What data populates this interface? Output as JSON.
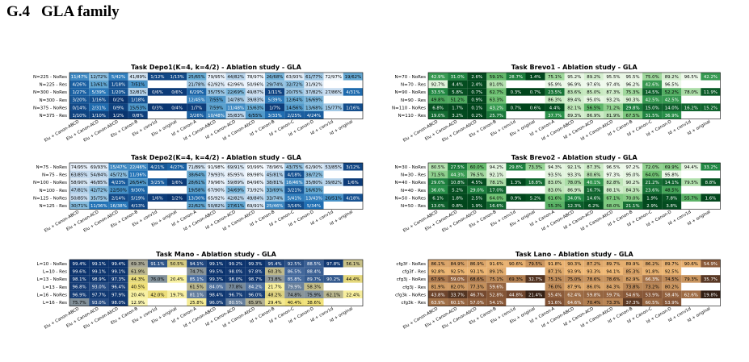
{
  "section": {
    "number": "G.4",
    "title": "GLA family"
  },
  "chart_data": [
    {
      "type": "heatmap",
      "title": "Task Depo1(K=4, k=4/2) - Ablation study - GLA",
      "colormap": "blues",
      "rows": [
        "N=225 - NoRes",
        "N=225 - Res",
        "N=300 - NoRes",
        "N=300 - Res",
        "N=375 - NoRes",
        "N=375 - Res"
      ],
      "columns": [
        "Elu + Canon-ABCD",
        "Elu + Canon-ACD",
        "Elu + Canon-AbCD",
        "Elu + Canon-B",
        "Elu + conv1d",
        "Elu + original",
        "Id + Canon-A",
        "Id + Canon-ABCD",
        "Id + Canon-ACD",
        "Id + Canon-AbCD",
        "Id + Canon-B",
        "Id + Canon-C",
        "Id + Canon-D",
        "Id + conv1d",
        "Id + original"
      ],
      "cells": [
        [
          "11/47%",
          "12/72%",
          "5/42%",
          "41/89%",
          "1/12%",
          "1/13%",
          "25/65%",
          "79/95%",
          "44/82%",
          "78/97%",
          "26/68%",
          "63/93%",
          "61/77%",
          "72/97%",
          "19/62%"
        ],
        [
          "4/26%",
          "13/61%",
          "1/18%",
          "7/51%",
          "",
          "",
          "21/78%",
          "62/92%",
          "62/96%",
          "50/96%",
          "29/74%",
          "32/72%",
          "31/92%",
          "",
          ""
        ],
        [
          "1/27%",
          "5/39%",
          "1/20%",
          "32/81%",
          "0/6%",
          "0/6%",
          "6/29%",
          "35/75%",
          "22/69%",
          "49/87%",
          "1/11%",
          "20/75%",
          "37/82%",
          "27/86%",
          "4/31%"
        ],
        [
          "3/20%",
          "1/16%",
          "0/2%",
          "1/18%",
          "",
          "",
          "12/45%",
          "7/55%",
          "14/78%",
          "39/83%",
          "5/39%",
          "12/64%",
          "16/69%",
          "",
          ""
        ],
        [
          "0/14%",
          "2/31%",
          "0/9%",
          "15/53%",
          "0/3%",
          "0/4%",
          "1/7%",
          "7/59%",
          "11/48%",
          "15/63%",
          "1/7%",
          "14/56%",
          "13/68%",
          "15/77%",
          "1/16%"
        ],
        [
          "1/10%",
          "1/10%",
          "1/2%",
          "0/8%",
          "",
          "",
          "3/26%",
          "10/48%",
          "35/83%",
          "6/55%",
          "3/33%",
          "2/25%",
          "4/24%",
          "",
          ""
        ]
      ]
    },
    {
      "type": "heatmap",
      "title": "Task Brevo1 - Ablation study - GLA",
      "colormap": "greens",
      "rows": [
        "N=70 - NoRes",
        "N=70 - Res",
        "N=90 - NoRes",
        "N=90 - Res",
        "N=110 - NoRes",
        "N=110 - Res"
      ],
      "columns": [
        "Elu + Canon-ABCD",
        "Elu + Canon-ACD",
        "Elu + Canon-AbCD",
        "Elu + Canon-B",
        "Elu + conv1d",
        "Elu + original",
        "Id + Canon-A",
        "Id + Canon-ABCD",
        "Id + Canon-ACD",
        "Id + Canon-AbCD",
        "Id + Canon-B",
        "Id + Canon-C",
        "Id + Canon-D",
        "Id + conv1d",
        "Id + original"
      ],
      "cells": [
        [
          "42.9%",
          "31.0%",
          "2.6%",
          "59.1%",
          "28.7%",
          "1.4%",
          "75.1%",
          "95.2%",
          "89.2%",
          "95.5%",
          "95.5%",
          "75.0%",
          "89.2%",
          "96.5%",
          "42.2%"
        ],
        [
          "92.7%",
          "4.4%",
          "2.4%",
          "81.0%",
          "",
          "",
          "95.9%",
          "96.9%",
          "97.6%",
          "97.4%",
          "96.2%",
          "42.6%",
          "96.5%",
          "",
          ""
        ],
        [
          "33.5%",
          "5.8%",
          "0.7%",
          "62.7%",
          "0.3%",
          "0.7%",
          "23.5%",
          "83.6%",
          "85.0%",
          "87.3%",
          "75.3%",
          "14.5%",
          "52.2%",
          "78.0%",
          "11.9%"
        ],
        [
          "49.8%",
          "51.2%",
          "0.9%",
          "63.3%",
          "",
          "",
          "86.3%",
          "89.4%",
          "95.0%",
          "93.2%",
          "90.3%",
          "42.5%",
          "42.5%",
          "",
          ""
        ],
        [
          "6.8%",
          "1.7%",
          "0.1%",
          "43.2%",
          "0.7%",
          "0.6%",
          "4.4%",
          "82.1%",
          "56.5%",
          "71.2%",
          "29.8%",
          "15.0%",
          "14.0%",
          "16.2%",
          "15.2%"
        ],
        [
          "19.0%",
          "3.2%",
          "0.2%",
          "25.7%",
          "",
          "",
          "37.7%",
          "89.3%",
          "86.9%",
          "81.9%",
          "67.5%",
          "31.5%",
          "36.9%",
          "",
          ""
        ]
      ]
    },
    {
      "type": "heatmap",
      "title": "Task Depo2(K=4, k=4/2) - Ablation study - GLA",
      "colormap": "blues",
      "rows": [
        "N=75 - NoRes",
        "N=75 - Res",
        "N=100 - NoRes",
        "N=100 - Res",
        "N=125 - NoRes",
        "N=125 - Res"
      ],
      "columns": [
        "Elu + Canon-ABCD",
        "Elu + Canon-ACD",
        "Elu + Canon-AbCD",
        "Elu + Canon-B",
        "Elu + conv1d",
        "Elu + original",
        "Id + Canon-A",
        "Id + Canon-ABCD",
        "Id + Canon-ACD",
        "Id + Canon-AbCD",
        "Id + Canon-B",
        "Id + Canon-C",
        "Id + Canon-D",
        "Id + conv1d",
        "Id + original"
      ],
      "cells": [
        [
          "74/95%",
          "69/93%",
          "15/47%",
          "22/46%",
          "4/21%",
          "4/27%",
          "71/89%",
          "91/98%",
          "69/91%",
          "93/99%",
          "78/96%",
          "43/75%",
          "62/90%",
          "53/85%",
          "3/12%"
        ],
        [
          "63/85%",
          "54/84%",
          "45/72%",
          "11/36%",
          "",
          "",
          "38/64%",
          "79/93%",
          "85/95%",
          "89/98%",
          "45/81%",
          "4/18%",
          "38/72%",
          "",
          ""
        ],
        [
          "58/90%",
          "46/85%",
          "4/23%",
          "26/54%",
          "3/25%",
          "1/6%",
          "28/61%",
          "79/96%",
          "59/89%",
          "84/96%",
          "38/81%",
          "16/46%",
          "35/80%",
          "39/82%",
          "1/6%"
        ],
        [
          "47/81%",
          "42/72%",
          "22/50%",
          "9/30%",
          "",
          "",
          "19/58%",
          "67/90%",
          "34/69%",
          "73/92%",
          "33/69%",
          "3/21%",
          "16/63%",
          "",
          ""
        ],
        [
          "50/85%",
          "35/75%",
          "2/14%",
          "5/19%",
          "1/6%",
          "1/2%",
          "13/30%",
          "65/92%",
          "42/82%",
          "49/84%",
          "33/74%",
          "5/41%",
          "13/43%",
          "20/51%",
          "4/18%"
        ],
        [
          "30/71%",
          "11/36%",
          "16/38%",
          "4/13%",
          "",
          "",
          "22/62%",
          "50/82%",
          "27/61%",
          "69/91%",
          "25/46%",
          "3/16%",
          "5/34%",
          "",
          ""
        ]
      ]
    },
    {
      "type": "heatmap",
      "title": "Task Brevo2 - Ablation study - GLA",
      "colormap": "greens",
      "rows": [
        "N=30 - NoRes",
        "N=30 - Res",
        "N=40 - NoRes",
        "N=40 - Res",
        "N=50 - NoRes",
        "N=50 - Res"
      ],
      "columns": [
        "Elu + Canon-ABCD",
        "Elu + Canon-ACD",
        "Elu + Canon-AbCD",
        "Elu + Canon-B",
        "Elu + conv1d",
        "Elu + original",
        "Id + Canon-A",
        "Id + Canon-ABCD",
        "Id + Canon-ACD",
        "Id + Canon-AbCD",
        "Id + Canon-B",
        "Id + Canon-C",
        "Id + Canon-D",
        "Id + conv1d",
        "Id + original"
      ],
      "cells": [
        [
          "80.5%",
          "27.5%",
          "60.0%",
          "94.2%",
          "29.8%",
          "73.3%",
          "94.3%",
          "92.1%",
          "87.3%",
          "96.5%",
          "97.2%",
          "72.0%",
          "69.9%",
          "94.4%",
          "33.2%"
        ],
        [
          "71.5%",
          "44.3%",
          "76.5%",
          "92.1%",
          "",
          "",
          "93.5%",
          "93.3%",
          "80.6%",
          "97.3%",
          "95.0%",
          "64.0%",
          "95.8%",
          "",
          ""
        ],
        [
          "29.0%",
          "10.8%",
          "4.5%",
          "78.1%",
          "1.3%",
          "18.8%",
          "83.0%",
          "78.0%",
          "40.1%",
          "82.8%",
          "90.2%",
          "21.2%",
          "14.1%",
          "79.5%",
          "8.8%"
        ],
        [
          "36.0%",
          "5.2%",
          "29.0%",
          "17.0%",
          "",
          "",
          "83.0%",
          "86.9%",
          "16.7%",
          "88.1%",
          "84.3%",
          "23.6%",
          "48.5%",
          "",
          ""
        ],
        [
          "6.1%",
          "1.8%",
          "2.5%",
          "64.0%",
          "0.9%",
          "5.2%",
          "61.6%",
          "34.0%",
          "14.6%",
          "67.1%",
          "70.0%",
          "1.9%",
          "7.8%",
          "55.7%",
          "1.6%"
        ],
        [
          "13.0%",
          "0.8%",
          "1.9%",
          "16.6%",
          "",
          "",
          "55.3%",
          "12.3%",
          "6.2%",
          "68.0%",
          "21.1%",
          "2.9%",
          "3.8%",
          "",
          ""
        ]
      ]
    },
    {
      "type": "heatmap",
      "title": "Task Mano - Ablation study - GLA",
      "colormap": "yellow-blue",
      "rows": [
        "L=10 - NoRes",
        "L=10 - Res",
        "L=13 - NoRes",
        "L=13 - Res",
        "L=16 - NoRes",
        "L=16 - Res"
      ],
      "columns": [
        "Elu + Canon-ABCD",
        "Elu + Canon-ACD",
        "Elu + Canon-AbCD",
        "Elu + Canon-B",
        "Elu + conv1d",
        "Elu + original",
        "Id + Canon-A",
        "Id + Canon-ABCD",
        "Id + Canon-ACD",
        "Id + Canon-AbCD",
        "Id + Canon-B",
        "Id + Canon-C",
        "Id + Canon-D",
        "Id + conv1d",
        "Id + original"
      ],
      "cells": [
        [
          "99.4%",
          "99.1%",
          "99.4%",
          "69.3%",
          "91.1%",
          "50.5%",
          "94.1%",
          "99.1%",
          "99.2%",
          "99.3%",
          "95.4%",
          "92.5%",
          "88.5%",
          "97.8%",
          "56.1%"
        ],
        [
          "99.6%",
          "99.1%",
          "99.1%",
          "61.9%",
          "",
          "",
          "74.7%",
          "99.5%",
          "98.0%",
          "97.8%",
          "60.3%",
          "86.5%",
          "88.4%",
          "",
          ""
        ],
        [
          "98.1%",
          "98.9%",
          "97.3%",
          "44.3%",
          "76.0%",
          "20.4%",
          "85.1%",
          "99.3%",
          "98.0%",
          "98.7%",
          "73.8%",
          "85.8%",
          "89.7%",
          "90.2%",
          "44.4%"
        ],
        [
          "96.8%",
          "93.0%",
          "96.4%",
          "40.5%",
          "",
          "",
          "61.5%",
          "84.0%",
          "77.8%",
          "84.2%",
          "21.7%",
          "79.9%",
          "58.3%",
          "",
          ""
        ],
        [
          "96.9%",
          "97.7%",
          "97.9%",
          "20.4%",
          "42.0%",
          "19.7%",
          "81.1%",
          "98.4%",
          "96.7%",
          "96.0%",
          "48.2%",
          "74.8%",
          "75.9%",
          "62.1%",
          "22.4%"
        ],
        [
          "75.7%",
          "93.0%",
          "98.0%",
          "12.9%",
          "",
          "",
          "25.8%",
          "96.0%",
          "80.5%",
          "65.9%",
          "29.4%",
          "40.4%",
          "38.6%",
          "",
          ""
        ]
      ]
    },
    {
      "type": "heatmap",
      "title": "Task Lano - Ablation study - GLA",
      "colormap": "copper",
      "rows": [
        "cfg3f - NoRes",
        "cfg3f - Res",
        "cfg3j - NoRes",
        "cfg3j - Res",
        "cfg3k - NoRes",
        "cfg3k - Res"
      ],
      "columns": [
        "Elu + Canon-ABCD",
        "Elu + Canon-ACD",
        "Elu + Canon-AbCD",
        "Elu + Canon-B",
        "Elu + conv1d",
        "Elu + original",
        "Id + Canon-A",
        "Id + Canon-ABCD",
        "Id + Canon-ACD",
        "Id + Canon-AbCD",
        "Id + Canon-B",
        "Id + Canon-C",
        "Id + Canon-D",
        "Id + conv1d",
        "Id + original"
      ],
      "cells": [
        [
          "86.1%",
          "84.9%",
          "86.9%",
          "91.6%",
          "90.6%",
          "79.5%",
          "91.8%",
          "90.3%",
          "87.2%",
          "89.7%",
          "89.9%",
          "86.2%",
          "89.7%",
          "90.6%",
          "54.9%"
        ],
        [
          "92.8%",
          "92.5%",
          "93.1%",
          "89.1%",
          "",
          "",
          "87.1%",
          "93.9%",
          "93.3%",
          "94.1%",
          "85.3%",
          "91.8%",
          "92.5%",
          "",
          ""
        ],
        [
          "67.9%",
          "59.0%",
          "68.6%",
          "75.1%",
          "69.3%",
          "32.7%",
          "75.1%",
          "75.0%",
          "78.6%",
          "78.6%",
          "82.9%",
          "66.3%",
          "74.5%",
          "79.3%",
          "35.7%"
        ],
        [
          "81.9%",
          "82.0%",
          "77.3%",
          "59.6%",
          "",
          "",
          "76.0%",
          "87.9%",
          "86.0%",
          "84.3%",
          "73.8%",
          "73.2%",
          "80.2%",
          "",
          ""
        ],
        [
          "43.8%",
          "33.7%",
          "46.7%",
          "52.8%",
          "44.8%",
          "21.4%",
          "55.4%",
          "62.4%",
          "59.8%",
          "59.7%",
          "54.6%",
          "53.9%",
          "58.4%",
          "62.6%",
          "19.8%"
        ],
        [
          "63.9%",
          "60.1%",
          "57.0%",
          "54.1%",
          "",
          "",
          "51.6%",
          "64.6%",
          "70.4%",
          "73.3%",
          "37.3%",
          "60.5%",
          "53.9%",
          "",
          ""
        ]
      ]
    }
  ]
}
